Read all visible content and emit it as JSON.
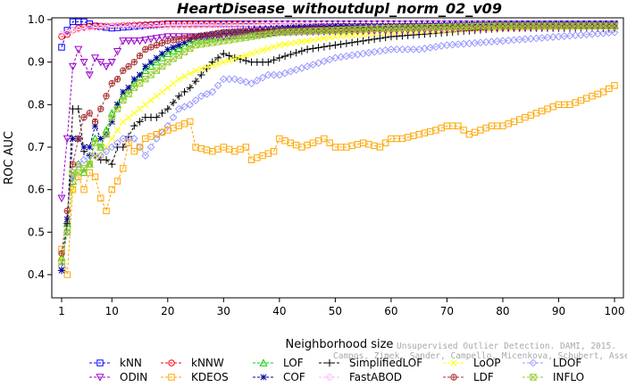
{
  "chart_data": {
    "type": "line",
    "title": "HeartDisease_withoutdupl_norm_02_v09",
    "xlabel": "Neighborhood size",
    "ylabel": "ROC AUC",
    "xlim": [
      1,
      100
    ],
    "ylim": [
      0.38,
      1.0
    ],
    "x_ticks": [
      "1",
      "10",
      "20",
      "30",
      "40",
      "50",
      "60",
      "70",
      "80",
      "90",
      "100"
    ],
    "y_ticks": [
      "0.4",
      "0.5",
      "0.6",
      "0.7",
      "0.8",
      "0.9",
      "1.0"
    ],
    "watermark_lines": [
      "Unsupervised Outlier Detection. DAMI, 2015.",
      "Campos, Zimek, Sander, Campello, Micenkova, Schubert, Assent, Houle"
    ],
    "legend_position": "bottom",
    "series": [
      {
        "name": "kNN",
        "color": "#0000ff",
        "marker": "square",
        "points": [
          [
            1,
            0.935
          ],
          [
            2,
            0.975
          ],
          [
            3,
            0.995
          ],
          [
            4,
            0.995
          ],
          [
            5,
            0.995
          ],
          [
            6,
            0.99
          ],
          [
            7,
            0.985
          ],
          [
            10,
            0.98
          ],
          [
            15,
            0.985
          ],
          [
            20,
            0.99
          ],
          [
            30,
            0.99
          ],
          [
            50,
            0.99
          ],
          [
            70,
            0.99
          ],
          [
            100,
            0.99
          ]
        ]
      },
      {
        "name": "kNNW",
        "color": "#ff0000",
        "marker": "circle",
        "points": [
          [
            1,
            0.96
          ],
          [
            2,
            0.965
          ],
          [
            3,
            0.975
          ],
          [
            4,
            0.98
          ],
          [
            6,
            0.985
          ],
          [
            10,
            0.985
          ],
          [
            20,
            0.99
          ],
          [
            40,
            0.99
          ],
          [
            70,
            0.99
          ],
          [
            100,
            0.99
          ]
        ]
      },
      {
        "name": "LOF",
        "color": "#00cc00",
        "marker": "triangle",
        "points": [
          [
            1,
            0.44
          ],
          [
            2,
            0.52
          ],
          [
            3,
            0.62
          ],
          [
            4,
            0.66
          ],
          [
            5,
            0.64
          ],
          [
            6,
            0.66
          ],
          [
            7,
            0.72
          ],
          [
            8,
            0.7
          ],
          [
            9,
            0.74
          ],
          [
            10,
            0.78
          ],
          [
            12,
            0.82
          ],
          [
            14,
            0.85
          ],
          [
            16,
            0.88
          ],
          [
            18,
            0.9
          ],
          [
            20,
            0.92
          ],
          [
            25,
            0.95
          ],
          [
            30,
            0.96
          ],
          [
            40,
            0.97
          ],
          [
            60,
            0.98
          ],
          [
            80,
            0.985
          ],
          [
            100,
            0.985
          ]
        ]
      },
      {
        "name": "SimplifiedLOF",
        "color": "#000000",
        "marker": "plus",
        "points": [
          [
            1,
            0.41
          ],
          [
            2,
            0.52
          ],
          [
            3,
            0.79
          ],
          [
            4,
            0.79
          ],
          [
            5,
            0.69
          ],
          [
            6,
            0.68
          ],
          [
            7,
            0.68
          ],
          [
            8,
            0.67
          ],
          [
            9,
            0.67
          ],
          [
            10,
            0.66
          ],
          [
            11,
            0.7
          ],
          [
            12,
            0.7
          ],
          [
            14,
            0.75
          ],
          [
            16,
            0.77
          ],
          [
            18,
            0.77
          ],
          [
            20,
            0.79
          ],
          [
            22,
            0.82
          ],
          [
            24,
            0.84
          ],
          [
            26,
            0.87
          ],
          [
            28,
            0.9
          ],
          [
            30,
            0.92
          ],
          [
            32,
            0.91
          ],
          [
            35,
            0.9
          ],
          [
            38,
            0.9
          ],
          [
            40,
            0.91
          ],
          [
            45,
            0.93
          ],
          [
            50,
            0.94
          ],
          [
            55,
            0.95
          ],
          [
            60,
            0.96
          ],
          [
            70,
            0.97
          ],
          [
            80,
            0.98
          ],
          [
            90,
            0.98
          ],
          [
            100,
            0.98
          ]
        ]
      },
      {
        "name": "LoOP",
        "color": "#ffff00",
        "marker": "cross",
        "points": [
          [
            1,
            0.44
          ],
          [
            2,
            0.5
          ],
          [
            3,
            0.6
          ],
          [
            4,
            0.66
          ],
          [
            5,
            0.65
          ],
          [
            6,
            0.66
          ],
          [
            7,
            0.68
          ],
          [
            8,
            0.68
          ],
          [
            9,
            0.7
          ],
          [
            10,
            0.72
          ],
          [
            12,
            0.76
          ],
          [
            14,
            0.78
          ],
          [
            16,
            0.8
          ],
          [
            18,
            0.82
          ],
          [
            20,
            0.84
          ],
          [
            22,
            0.86
          ],
          [
            25,
            0.88
          ],
          [
            30,
            0.9
          ],
          [
            35,
            0.92
          ],
          [
            40,
            0.94
          ],
          [
            50,
            0.96
          ],
          [
            60,
            0.97
          ],
          [
            70,
            0.975
          ],
          [
            80,
            0.98
          ],
          [
            100,
            0.985
          ]
        ]
      },
      {
        "name": "LDOF",
        "color": "#9999ff",
        "marker": "diamond",
        "points": [
          [
            1,
            0.42
          ],
          [
            2,
            0.5
          ],
          [
            3,
            0.63
          ],
          [
            4,
            0.66
          ],
          [
            5,
            0.67
          ],
          [
            6,
            0.68
          ],
          [
            8,
            0.68
          ],
          [
            10,
            0.7
          ],
          [
            12,
            0.72
          ],
          [
            14,
            0.72
          ],
          [
            16,
            0.68
          ],
          [
            18,
            0.72
          ],
          [
            20,
            0.75
          ],
          [
            22,
            0.79
          ],
          [
            24,
            0.8
          ],
          [
            26,
            0.82
          ],
          [
            28,
            0.83
          ],
          [
            30,
            0.86
          ],
          [
            32,
            0.86
          ],
          [
            35,
            0.85
          ],
          [
            38,
            0.87
          ],
          [
            40,
            0.87
          ],
          [
            45,
            0.89
          ],
          [
            50,
            0.91
          ],
          [
            55,
            0.92
          ],
          [
            60,
            0.93
          ],
          [
            65,
            0.93
          ],
          [
            70,
            0.94
          ],
          [
            80,
            0.95
          ],
          [
            90,
            0.96
          ],
          [
            100,
            0.97
          ]
        ]
      },
      {
        "name": "ODIN",
        "color": "#9900cc",
        "marker": "triangle-down",
        "points": [
          [
            1,
            0.58
          ],
          [
            2,
            0.72
          ],
          [
            3,
            0.89
          ],
          [
            4,
            0.93
          ],
          [
            5,
            0.9
          ],
          [
            6,
            0.87
          ],
          [
            7,
            0.91
          ],
          [
            8,
            0.9
          ],
          [
            9,
            0.89
          ],
          [
            10,
            0.9
          ],
          [
            12,
            0.95
          ],
          [
            15,
            0.95
          ],
          [
            20,
            0.96
          ],
          [
            30,
            0.96
          ],
          [
            40,
            0.97
          ],
          [
            60,
            0.975
          ],
          [
            80,
            0.98
          ],
          [
            100,
            0.985
          ]
        ]
      },
      {
        "name": "KDEOS",
        "color": "#ffa500",
        "marker": "square",
        "points": [
          [
            1,
            0.46
          ],
          [
            2,
            0.4
          ],
          [
            3,
            0.6
          ],
          [
            4,
            0.63
          ],
          [
            5,
            0.6
          ],
          [
            6,
            0.64
          ],
          [
            7,
            0.63
          ],
          [
            8,
            0.58
          ],
          [
            9,
            0.55
          ],
          [
            10,
            0.6
          ],
          [
            11,
            0.62
          ],
          [
            12,
            0.65
          ],
          [
            13,
            0.71
          ],
          [
            14,
            0.69
          ],
          [
            15,
            0.7
          ],
          [
            16,
            0.72
          ],
          [
            18,
            0.73
          ],
          [
            20,
            0.74
          ],
          [
            22,
            0.75
          ],
          [
            24,
            0.76
          ],
          [
            25,
            0.7
          ],
          [
            28,
            0.69
          ],
          [
            30,
            0.7
          ],
          [
            32,
            0.69
          ],
          [
            34,
            0.7
          ],
          [
            35,
            0.67
          ],
          [
            37,
            0.68
          ],
          [
            39,
            0.69
          ],
          [
            40,
            0.72
          ],
          [
            42,
            0.71
          ],
          [
            44,
            0.7
          ],
          [
            46,
            0.71
          ],
          [
            48,
            0.72
          ],
          [
            50,
            0.7
          ],
          [
            52,
            0.7
          ],
          [
            55,
            0.71
          ],
          [
            58,
            0.7
          ],
          [
            60,
            0.72
          ],
          [
            62,
            0.72
          ],
          [
            65,
            0.73
          ],
          [
            68,
            0.74
          ],
          [
            70,
            0.75
          ],
          [
            72,
            0.75
          ],
          [
            74,
            0.73
          ],
          [
            76,
            0.74
          ],
          [
            78,
            0.75
          ],
          [
            80,
            0.75
          ],
          [
            82,
            0.76
          ],
          [
            84,
            0.77
          ],
          [
            86,
            0.78
          ],
          [
            88,
            0.79
          ],
          [
            90,
            0.8
          ],
          [
            92,
            0.8
          ],
          [
            94,
            0.81
          ],
          [
            96,
            0.82
          ],
          [
            98,
            0.83
          ],
          [
            100,
            0.845
          ]
        ]
      },
      {
        "name": "FastABOD",
        "color": "#ffb6ff",
        "marker": "diamond",
        "points": [
          [
            1,
            0.965
          ],
          [
            2,
            0.97
          ],
          [
            3,
            0.975
          ],
          [
            5,
            0.98
          ],
          [
            10,
            0.985
          ],
          [
            20,
            0.985
          ],
          [
            40,
            0.99
          ],
          [
            70,
            0.99
          ],
          [
            100,
            0.99
          ]
        ]
      },
      {
        "name": "COF",
        "color": "#000099",
        "marker": "asterisk",
        "points": [
          [
            1,
            0.41
          ],
          [
            2,
            0.53
          ],
          [
            3,
            0.72
          ],
          [
            4,
            0.72
          ],
          [
            5,
            0.7
          ],
          [
            6,
            0.7
          ],
          [
            7,
            0.75
          ],
          [
            8,
            0.72
          ],
          [
            9,
            0.73
          ],
          [
            10,
            0.76
          ],
          [
            11,
            0.8
          ],
          [
            12,
            0.83
          ],
          [
            13,
            0.84
          ],
          [
            14,
            0.86
          ],
          [
            15,
            0.87
          ],
          [
            16,
            0.89
          ],
          [
            18,
            0.91
          ],
          [
            20,
            0.93
          ],
          [
            22,
            0.94
          ],
          [
            25,
            0.96
          ],
          [
            30,
            0.97
          ],
          [
            35,
            0.975
          ],
          [
            40,
            0.98
          ],
          [
            50,
            0.985
          ],
          [
            60,
            0.985
          ],
          [
            80,
            0.99
          ],
          [
            100,
            0.99
          ]
        ]
      },
      {
        "name": "LDF",
        "color": "#aa3333",
        "marker": "circle-plus",
        "points": [
          [
            1,
            0.45
          ],
          [
            2,
            0.55
          ],
          [
            3,
            0.66
          ],
          [
            4,
            0.72
          ],
          [
            5,
            0.77
          ],
          [
            6,
            0.78
          ],
          [
            7,
            0.76
          ],
          [
            8,
            0.79
          ],
          [
            9,
            0.82
          ],
          [
            10,
            0.85
          ],
          [
            11,
            0.86
          ],
          [
            12,
            0.88
          ],
          [
            14,
            0.9
          ],
          [
            16,
            0.93
          ],
          [
            18,
            0.94
          ],
          [
            20,
            0.95
          ],
          [
            25,
            0.96
          ],
          [
            30,
            0.97
          ],
          [
            40,
            0.975
          ],
          [
            60,
            0.98
          ],
          [
            80,
            0.985
          ],
          [
            100,
            0.985
          ]
        ]
      },
      {
        "name": "INFLO",
        "color": "#99cc33",
        "marker": "square-x",
        "points": [
          [
            1,
            0.43
          ],
          [
            2,
            0.5
          ],
          [
            3,
            0.64
          ],
          [
            4,
            0.64
          ],
          [
            5,
            0.65
          ],
          [
            6,
            0.66
          ],
          [
            7,
            0.71
          ],
          [
            8,
            0.7
          ],
          [
            9,
            0.73
          ],
          [
            10,
            0.77
          ],
          [
            12,
            0.81
          ],
          [
            14,
            0.84
          ],
          [
            16,
            0.86
          ],
          [
            18,
            0.88
          ],
          [
            20,
            0.9
          ],
          [
            25,
            0.94
          ],
          [
            30,
            0.95
          ],
          [
            40,
            0.97
          ],
          [
            60,
            0.98
          ],
          [
            80,
            0.985
          ],
          [
            100,
            0.985
          ]
        ]
      }
    ]
  }
}
